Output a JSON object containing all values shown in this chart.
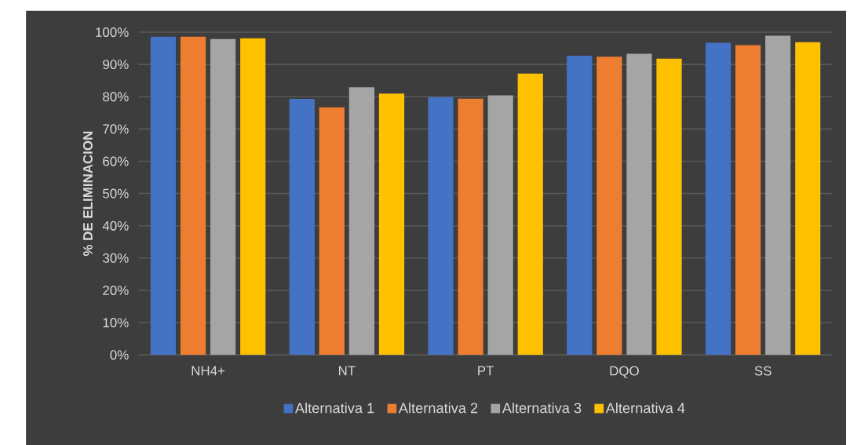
{
  "chart_data": {
    "type": "bar",
    "ylabel": "% DE ELIMINACION",
    "categories": [
      "NH4+",
      "NT",
      "PT",
      "DQO",
      "SS"
    ],
    "series": [
      {
        "name": "Alternativa 1",
        "color": "#4472c4",
        "values": [
          98.6,
          79.3,
          79.9,
          92.7,
          96.7
        ]
      },
      {
        "name": "Alternativa 2",
        "color": "#ed7d31",
        "values": [
          98.6,
          76.7,
          79.4,
          92.4,
          96.0
        ]
      },
      {
        "name": "Alternativa 3",
        "color": "#a5a5a5",
        "values": [
          97.9,
          82.9,
          80.4,
          93.3,
          98.9
        ]
      },
      {
        "name": "Alternativa 4",
        "color": "#ffc000",
        "values": [
          98.1,
          81.0,
          87.2,
          91.8,
          96.9
        ]
      }
    ],
    "ylim": [
      0,
      100
    ],
    "yticks": [
      {
        "value": 0,
        "label": "0%"
      },
      {
        "value": 10,
        "label": "10%"
      },
      {
        "value": 20,
        "label": "20%"
      },
      {
        "value": 30,
        "label": "30%"
      },
      {
        "value": 40,
        "label": "40%"
      },
      {
        "value": 50,
        "label": "50%"
      },
      {
        "value": 60,
        "label": "60%"
      },
      {
        "value": 70,
        "label": "70%"
      },
      {
        "value": 80,
        "label": "80%"
      },
      {
        "value": 90,
        "label": "90%"
      },
      {
        "value": 100,
        "label": "100%"
      }
    ],
    "grid": "y",
    "legend": "bottom"
  }
}
